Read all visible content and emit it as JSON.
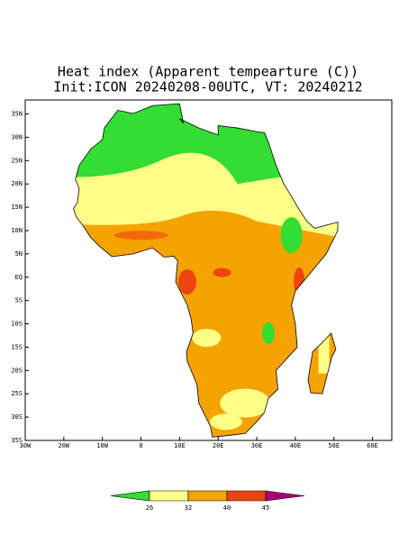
{
  "title": "Heat index (Apparent tempearture (C))",
  "subtitle": "Init:ICON 20240208-00UTC, VT: 20240212",
  "map": {
    "xlim": [
      -30,
      65
    ],
    "ylim": [
      -35,
      38
    ],
    "xticks": [
      {
        "value": -30,
        "label": "30W"
      },
      {
        "value": -20,
        "label": "20W"
      },
      {
        "value": -10,
        "label": "10W"
      },
      0,
      {
        "value": 10,
        "label": "10E"
      },
      {
        "value": 20,
        "label": "20E"
      },
      {
        "value": 30,
        "label": "30E"
      },
      {
        "value": 40,
        "label": "40E"
      },
      {
        "value": 50,
        "label": "50E"
      },
      {
        "value": 60,
        "label": "60E"
      }
    ],
    "yticks": [
      {
        "value": 35,
        "label": "35N"
      },
      {
        "value": 30,
        "label": "30N"
      },
      {
        "value": 25,
        "label": "25N"
      },
      {
        "value": 20,
        "label": "20N"
      },
      {
        "value": 15,
        "label": "15N"
      },
      {
        "value": 10,
        "label": "10N"
      },
      {
        "value": 5,
        "label": "5N"
      },
      {
        "value": 0,
        "label": "EQ"
      },
      {
        "value": -5,
        "label": "5S"
      },
      {
        "value": -10,
        "label": "10S"
      },
      {
        "value": -15,
        "label": "15S"
      },
      {
        "value": -20,
        "label": "20S"
      },
      {
        "value": -25,
        "label": "25S"
      },
      {
        "value": -30,
        "label": "30S"
      },
      {
        "value": -35,
        "label": "35S"
      }
    ]
  },
  "colorbar": {
    "ticks": [
      26,
      32,
      40,
      45
    ],
    "colors": [
      "#33dd33",
      "#ffff88",
      "#f5a300",
      "#ee4411",
      "#aa0077"
    ]
  }
}
